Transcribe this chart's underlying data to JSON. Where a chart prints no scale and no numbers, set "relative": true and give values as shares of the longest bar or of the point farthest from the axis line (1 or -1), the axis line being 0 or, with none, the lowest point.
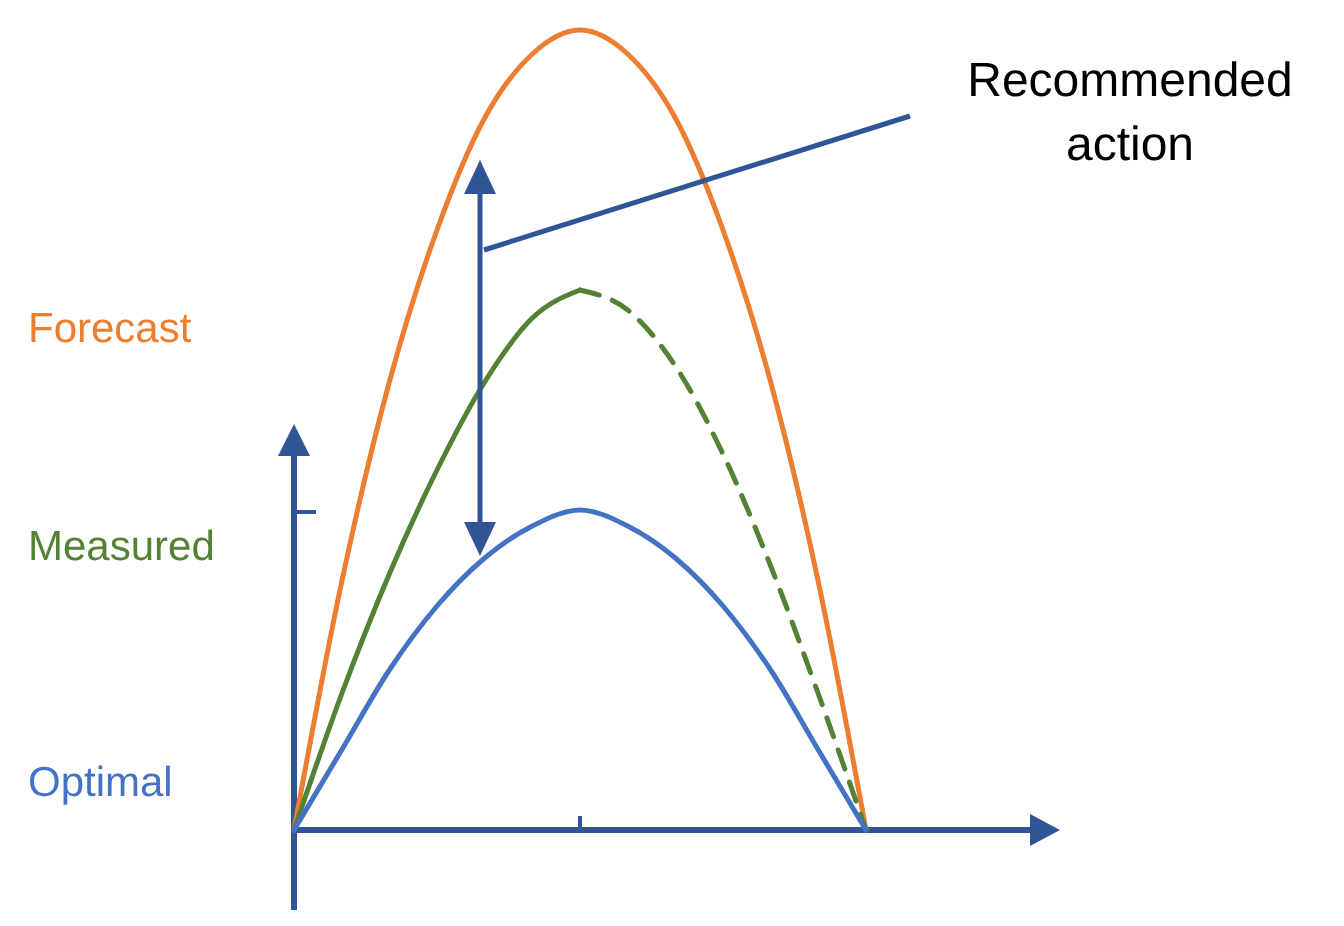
{
  "chart_data": {
    "type": "line",
    "relative": true,
    "categories": [
      null,
      null,
      null,
      null,
      null,
      null,
      null,
      null,
      null,
      null,
      null,
      null,
      null
    ],
    "series": [
      {
        "name": "Forecast",
        "color": "#ed7d31",
        "values": [
          0,
          0.31,
          0.56,
          0.75,
          0.89,
          0.97,
          1,
          0.97,
          0.89,
          0.75,
          0.56,
          0.31,
          0
        ]
      },
      {
        "name": "Measured",
        "color": "#548235",
        "line_style": "solid",
        "values": [
          0,
          0.17,
          0.32,
          0.45,
          0.56,
          0.64,
          0.675,
          null,
          null,
          null,
          null,
          null,
          null
        ]
      },
      {
        "color": "#548235",
        "line_style": "dashed",
        "values": [
          null,
          null,
          null,
          null,
          null,
          null,
          0.675,
          0.65,
          0.58,
          0.47,
          0.33,
          0.17,
          0
        ]
      },
      {
        "name": "Optimal",
        "color": "#4472c4",
        "values": [
          0,
          0.1,
          0.2,
          0.28,
          0.34,
          0.38,
          0.4,
          0.38,
          0.34,
          0.28,
          0.2,
          0.1,
          0
        ]
      }
    ],
    "annotations": [
      "Recommended action"
    ]
  }
}
